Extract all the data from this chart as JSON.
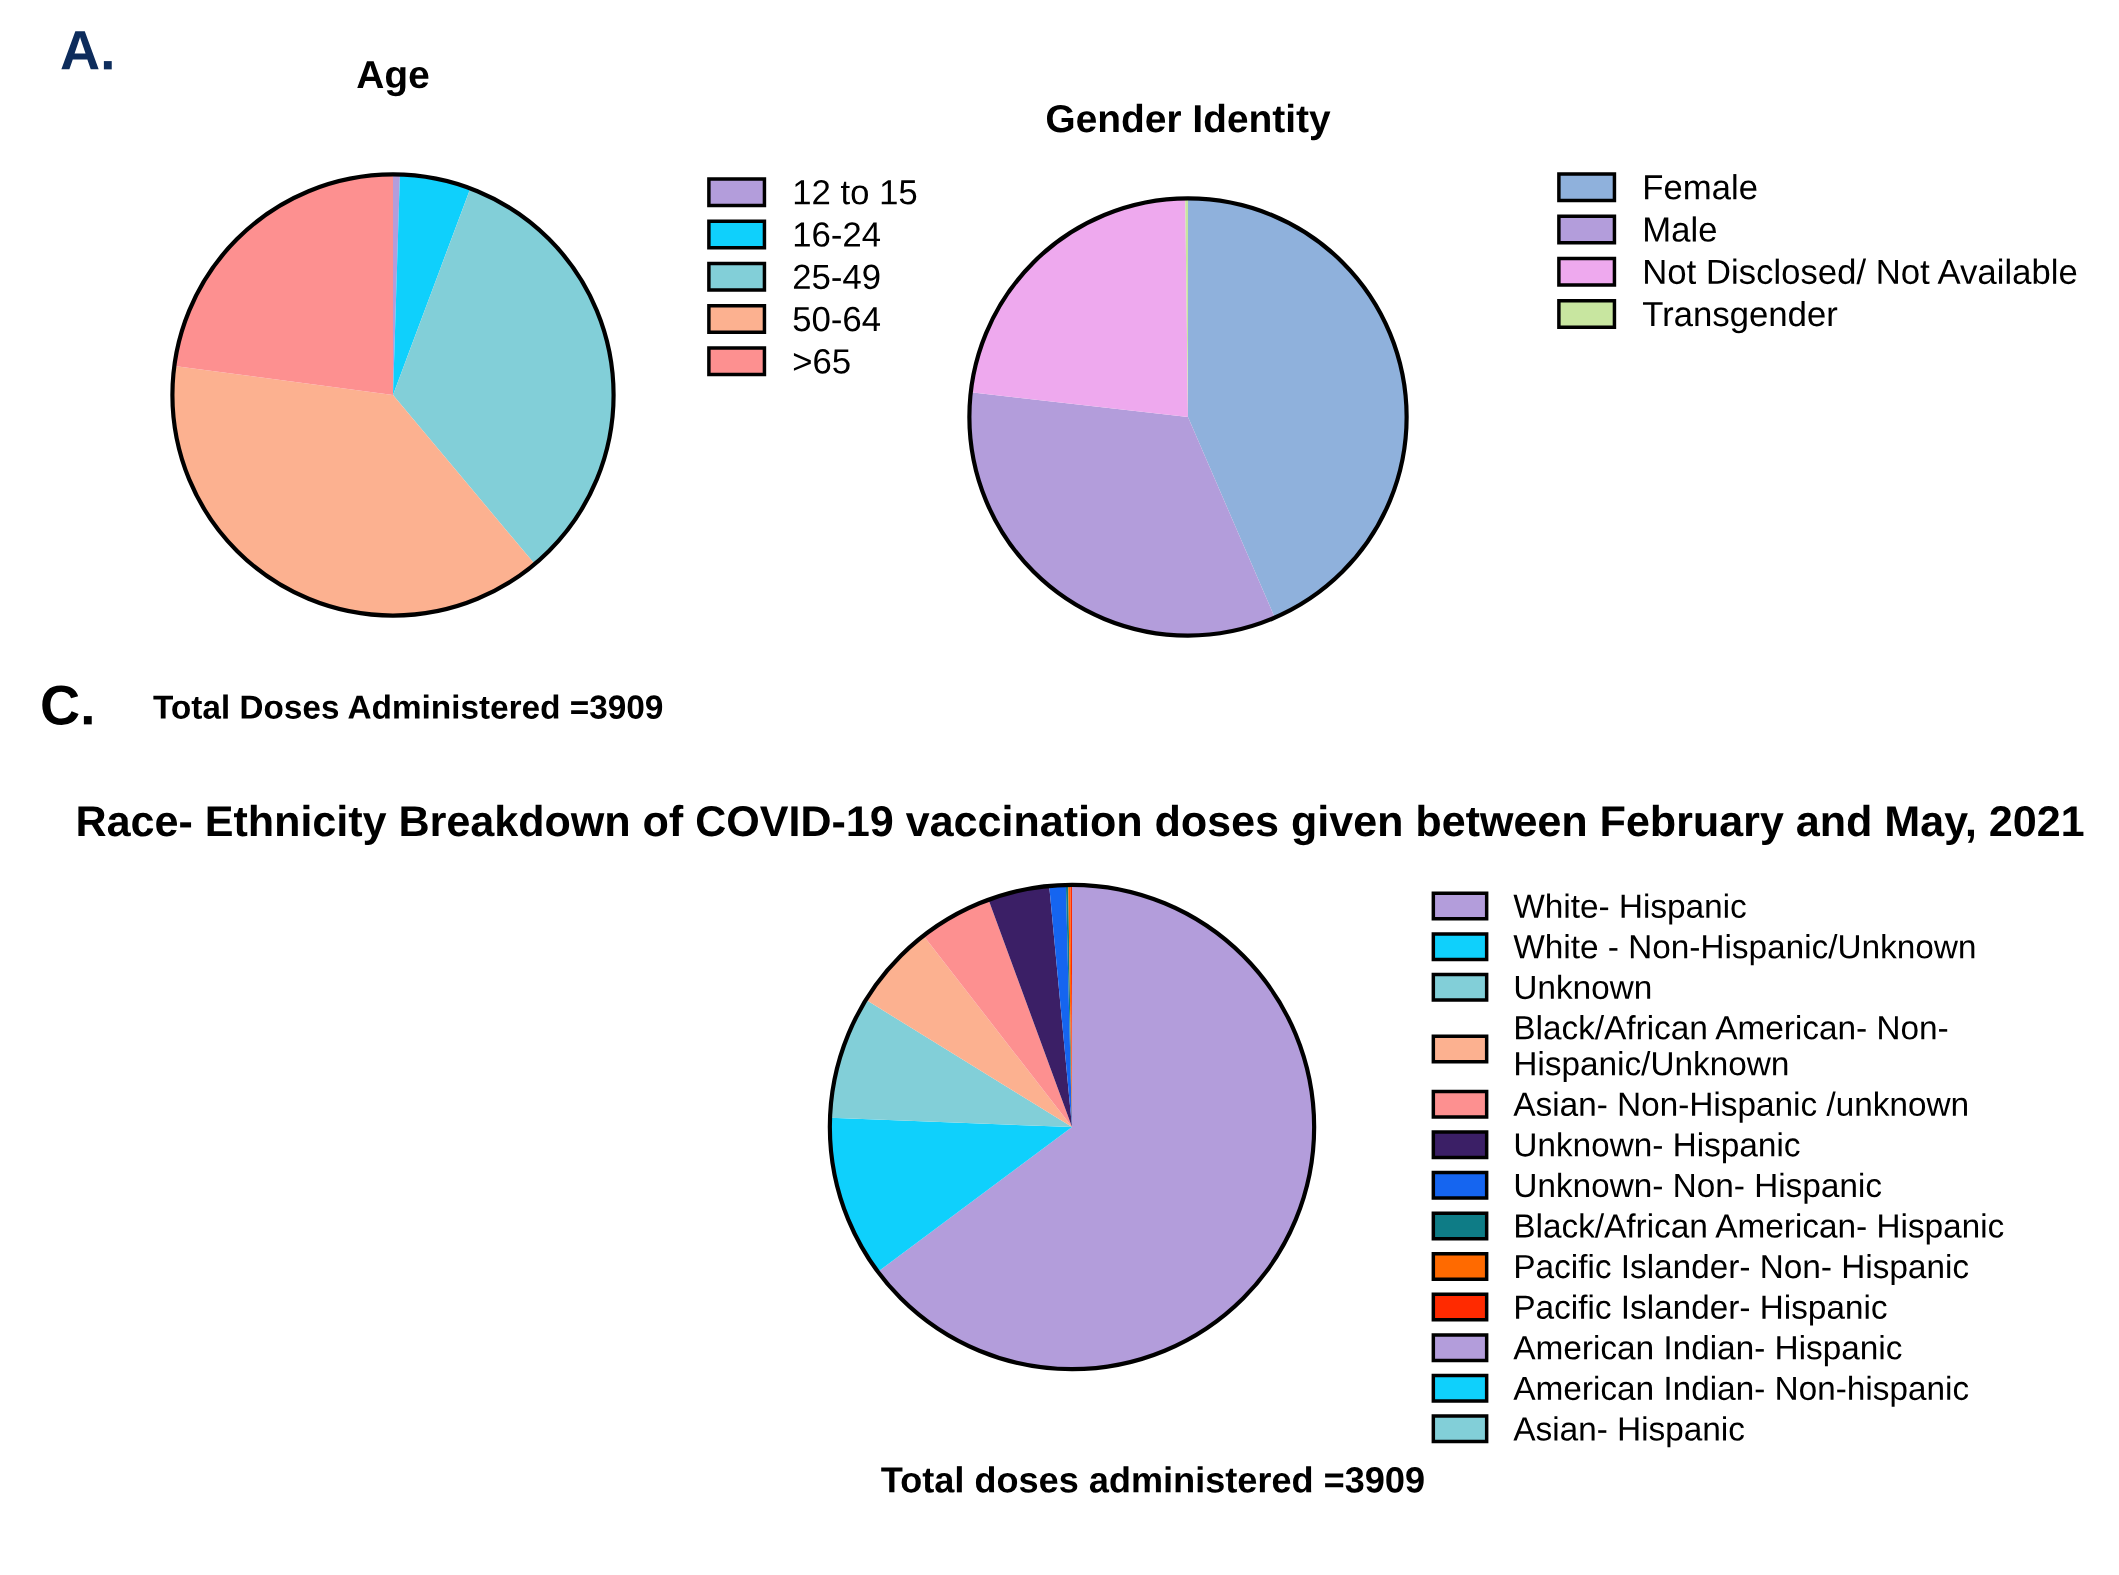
{
  "chart_data": [
    {
      "type": "pie",
      "title": "Age",
      "annotations": [
        "A."
      ],
      "legend": "right",
      "categories": [
        "12 to 15",
        "16-24",
        "25-49",
        "50-64",
        ">65"
      ],
      "values": [
        0.5,
        5.2,
        33.2,
        38.2,
        22.9
      ],
      "colors": [
        "#b39ddb",
        "#0fd0fc",
        "#82cfd8",
        "#fcb190",
        "#fd9090"
      ]
    },
    {
      "type": "pie",
      "title": "Gender Identity",
      "legend": "right",
      "categories": [
        "Female",
        "Male",
        "Not Disclosed/ Not Available",
        "Transgender"
      ],
      "values": [
        43.5,
        33.3,
        23.0,
        0.2
      ],
      "colors": [
        "#8fb1dc",
        "#b39ddb",
        "#eea9ee",
        "#c8e6a0"
      ]
    },
    {
      "type": "pie",
      "title": "Race- Ethnicity Breakdown of COVID-19 vaccination doses given between February and May, 2021",
      "annotations": [
        "C.",
        "Total Doses Administered =3909",
        "Total doses administered =3909"
      ],
      "legend": "right",
      "categories": [
        "White- Hispanic",
        "White - Non-Hispanic/Unknown",
        "Unknown",
        "Black/African American- Non-Hispanic/Unknown",
        "Asian- Non-Hispanic /unknown",
        "Unknown- Hispanic",
        "Unknown- Non- Hispanic",
        "Black/African American- Hispanic",
        "Pacific Islander- Non- Hispanic",
        "Pacific Islander- Hispanic",
        "American Indian- Hispanic",
        "American Indian- Non-hispanic",
        "Asian- Hispanic"
      ],
      "values": [
        64.8,
        10.8,
        8.2,
        5.7,
        4.9,
        4.1,
        1.1,
        0.15,
        0.15,
        0.1,
        0,
        0,
        0
      ],
      "colors": [
        "#b39ddb",
        "#0fd0fc",
        "#82cfd8",
        "#fcb190",
        "#fd9090",
        "#3b1f66",
        "#1565f0",
        "#0e7c86",
        "#ff6a00",
        "#ff2a00",
        "#b39ddb",
        "#0fd0fc",
        "#82cfd8"
      ]
    }
  ]
}
